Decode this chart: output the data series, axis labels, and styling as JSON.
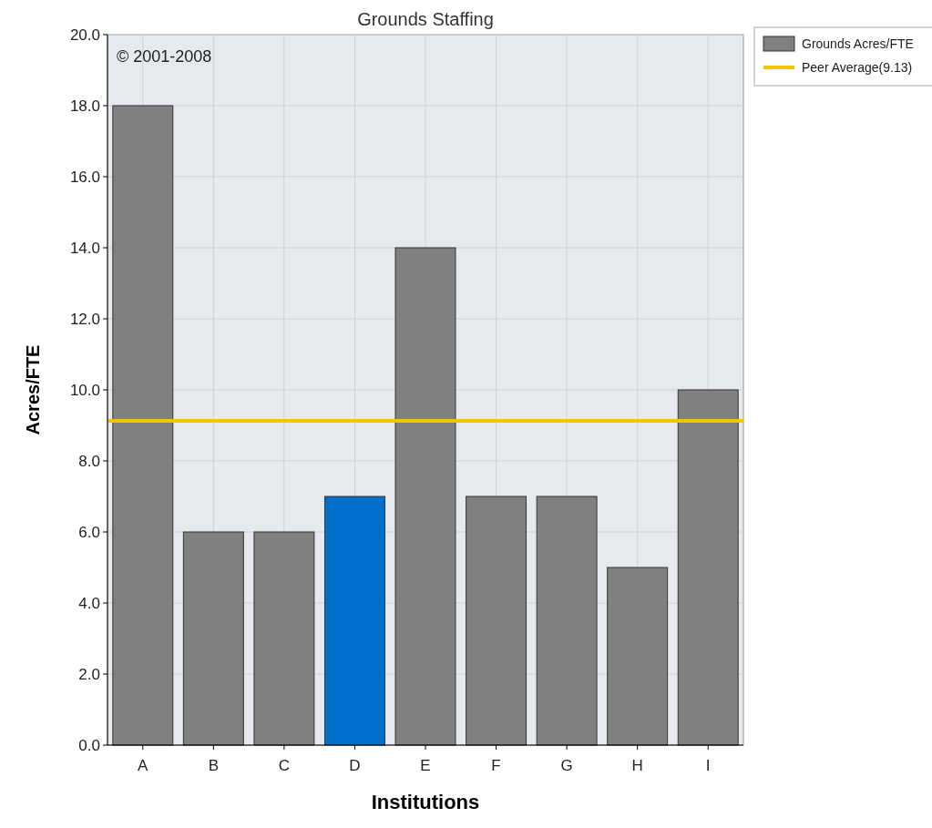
{
  "chart_data": {
    "type": "bar",
    "title": "Grounds Staffing",
    "xlabel": "Institutions",
    "ylabel": "Acres/FTE",
    "categories": [
      "A",
      "B",
      "C",
      "D",
      "E",
      "F",
      "G",
      "H",
      "I"
    ],
    "series": [
      {
        "name": "Grounds Acres/FTE",
        "color": "#808080",
        "colors": [
          "#808080",
          "#808080",
          "#808080",
          "#0070cc",
          "#808080",
          "#808080",
          "#808080",
          "#808080",
          "#808080"
        ],
        "values": [
          18,
          6,
          6,
          7,
          14,
          7,
          7,
          5,
          10
        ]
      }
    ],
    "ylim": [
      0,
      20
    ],
    "yticks": [
      {
        "value": 0,
        "label": "0.0"
      },
      {
        "value": 2,
        "label": "2.0"
      },
      {
        "value": 4,
        "label": "4.0"
      },
      {
        "value": 6,
        "label": "6.0"
      },
      {
        "value": 8,
        "label": "8.0"
      },
      {
        "value": 10,
        "label": "10.0"
      },
      {
        "value": 12,
        "label": "12.0"
      },
      {
        "value": 14,
        "label": "14.0"
      },
      {
        "value": 16,
        "label": "16.0"
      },
      {
        "value": 18,
        "label": "18.0"
      },
      {
        "value": 20,
        "label": "20.0"
      }
    ],
    "ref_lines": [
      {
        "axis": "y",
        "value": 9.13,
        "label": "Peer Average(9.13)",
        "color": "#f5c400"
      }
    ],
    "annotations": [
      "© 2001-2008"
    ],
    "grid": true,
    "legend": "top right"
  }
}
